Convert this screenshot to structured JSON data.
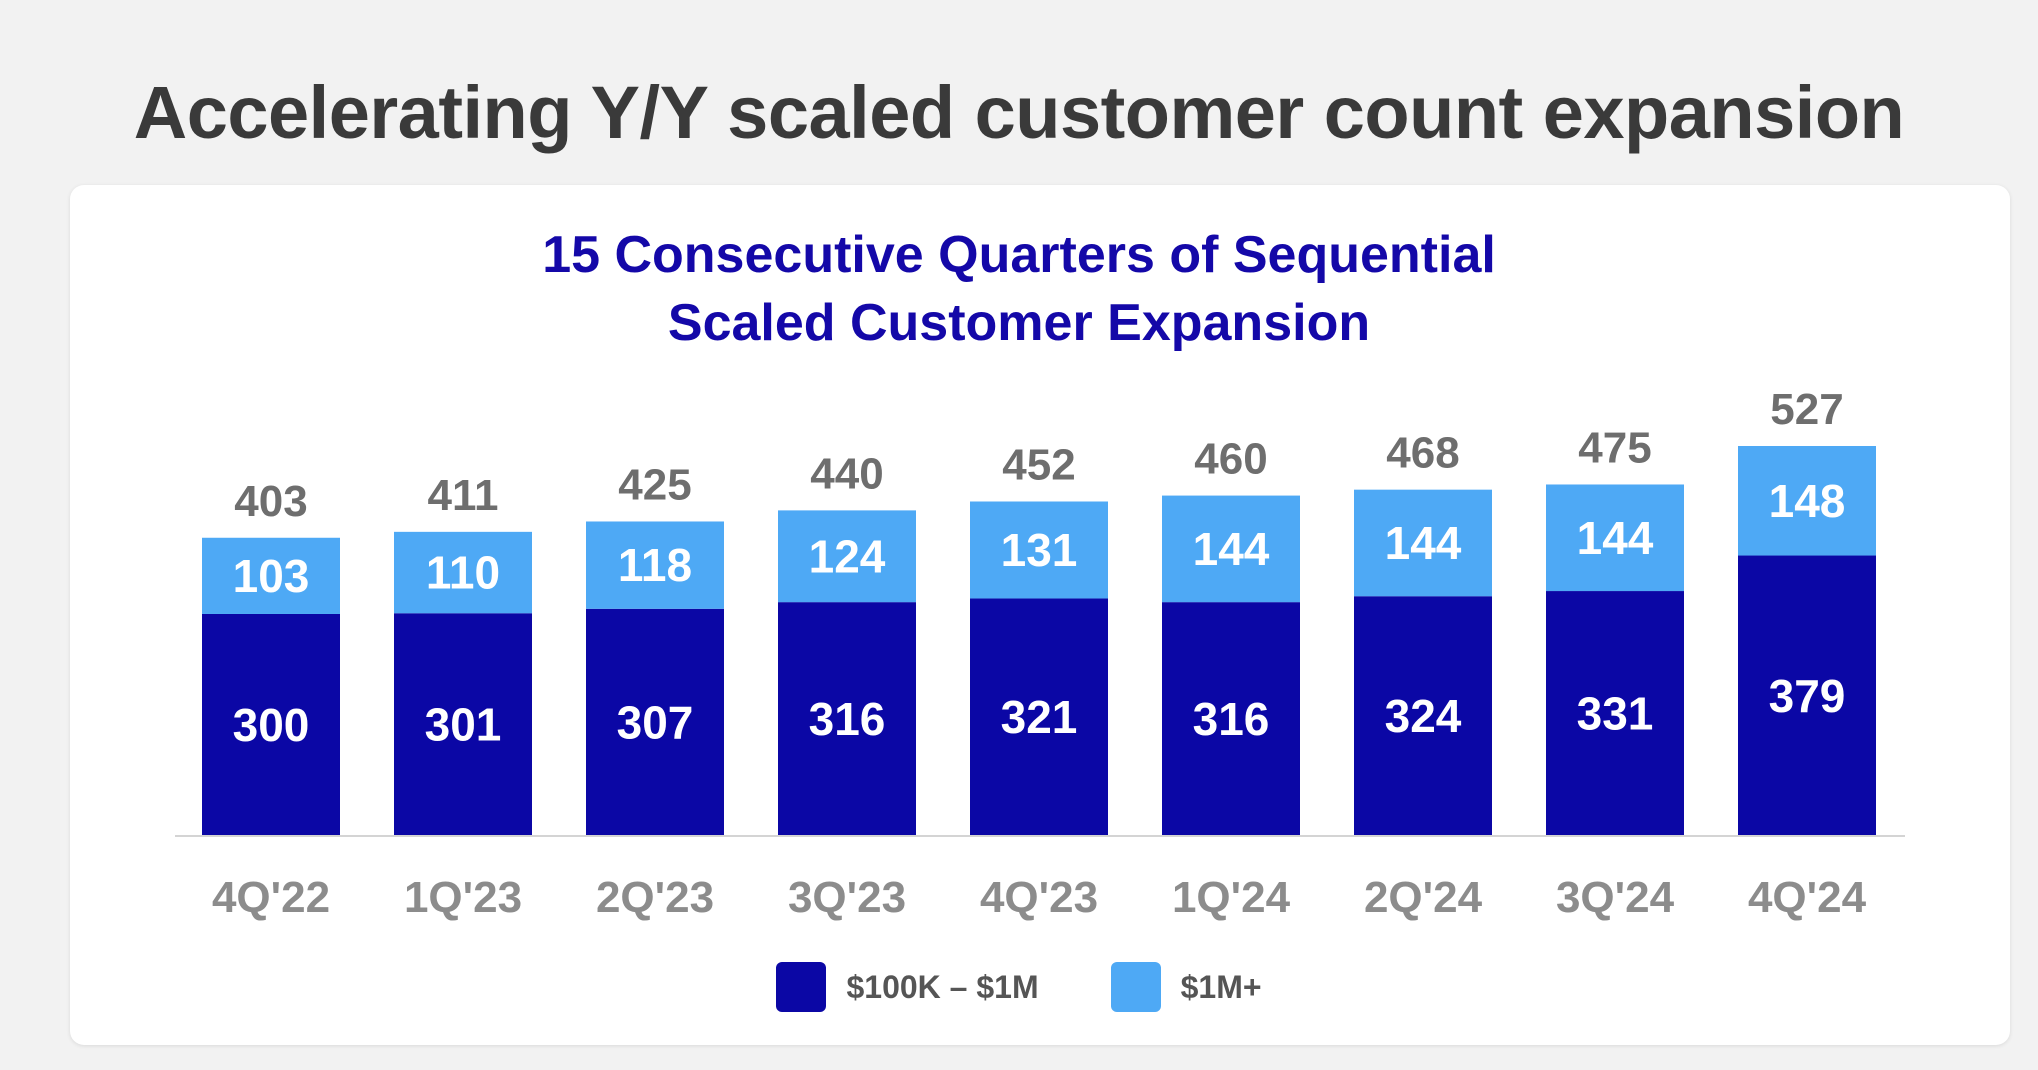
{
  "page": {
    "title": "Accelerating Y/Y scaled customer count expansion"
  },
  "colors": {
    "background": "#f2f2f2",
    "card": "#ffffff",
    "title": "#3a3a3a",
    "chart_title": "#1408a8",
    "series_1": "#0b07a5",
    "series_2": "#4ea9f5",
    "total_label": "#6e6e6e",
    "category_label": "#8c8c8c"
  },
  "chart_data": {
    "type": "bar",
    "stacked": true,
    "title_line1": "15 Consecutive Quarters of Sequential",
    "title_line2": "Scaled Customer Expansion",
    "categories": [
      "4Q'22",
      "1Q'23",
      "2Q'23",
      "3Q'23",
      "4Q'23",
      "1Q'24",
      "2Q'24",
      "3Q'24",
      "4Q'24"
    ],
    "series": [
      {
        "name": "$100K – $1M",
        "values": [
          300,
          301,
          307,
          316,
          321,
          316,
          324,
          331,
          379
        ]
      },
      {
        "name": "$1M+",
        "values": [
          103,
          110,
          118,
          124,
          131,
          144,
          144,
          144,
          148
        ]
      }
    ],
    "totals": [
      403,
      411,
      425,
      440,
      452,
      460,
      468,
      475,
      527
    ],
    "ylim": [
      0,
      600
    ],
    "grid": false,
    "legend": "bottom-center"
  }
}
